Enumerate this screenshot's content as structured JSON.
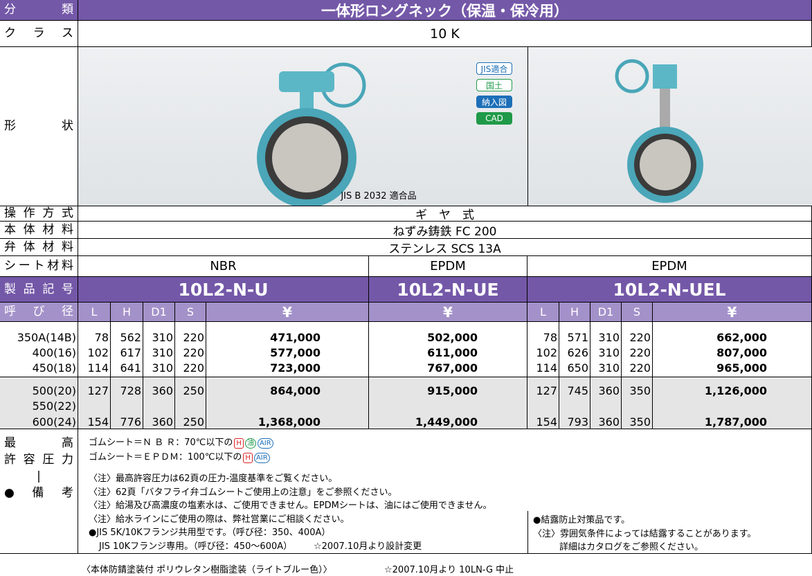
{
  "header": {
    "label": "分類",
    "title": "一体形ロングネック（保温・保冷用）"
  },
  "class": {
    "label": "クラス",
    "value": "10 K"
  },
  "shape": {
    "label": "形状",
    "badges": [
      "JIS適合",
      "国土",
      "納入図",
      "CAD"
    ],
    "note": "JIS B 2032 適合品"
  },
  "specs": [
    {
      "label": "操作方式",
      "value": "ギ　ヤ　式"
    },
    {
      "label": "本体材料",
      "value": "ねずみ鋳鉄 FC 200"
    },
    {
      "label": "弁体材料",
      "value": "ステンレス SCS 13A"
    }
  ],
  "seat": {
    "label": "シート材料",
    "values": [
      "NBR",
      "EPDM",
      "EPDM"
    ]
  },
  "models": {
    "label": "製品記号",
    "values": [
      "10L2-N-U",
      "10L2-N-UE",
      "10L2-N-UEL"
    ]
  },
  "columns": {
    "label": "呼び径",
    "left": [
      "L",
      "H",
      "D1",
      "S",
      "¥"
    ],
    "mid": "¥",
    "right": [
      "L",
      "H",
      "D1",
      "S",
      "¥"
    ]
  },
  "rows": [
    {
      "size": "350A(14B)",
      "left": [
        "78",
        "562",
        "310",
        "220",
        "471,000"
      ],
      "mid": "502,000",
      "right": [
        "78",
        "571",
        "310",
        "220",
        "662,000"
      ]
    },
    {
      "size": "400(16)",
      "left": [
        "102",
        "617",
        "310",
        "220",
        "577,000"
      ],
      "mid": "611,000",
      "right": [
        "102",
        "626",
        "310",
        "220",
        "807,000"
      ]
    },
    {
      "size": "450(18)",
      "left": [
        "114",
        "641",
        "310",
        "220",
        "723,000"
      ],
      "mid": "767,000",
      "right": [
        "114",
        "650",
        "310",
        "220",
        "965,000"
      ]
    },
    {
      "size": "500(20)",
      "left": [
        "127",
        "728",
        "360",
        "250",
        "864,000"
      ],
      "mid": "915,000",
      "right": [
        "127",
        "745",
        "360",
        "350",
        "1,126,000"
      ]
    },
    {
      "size": "550(22)"
    },
    {
      "size": "600(24)",
      "left": [
        "154",
        "776",
        "360",
        "250",
        "1,368,000"
      ],
      "mid": "1,449,000",
      "right": [
        "154",
        "793",
        "360",
        "350",
        "1,787,000"
      ]
    }
  ],
  "notes": {
    "label": [
      "最高",
      "許容圧力",
      "|",
      "●備考"
    ],
    "pressure": [
      {
        "text": "ゴムシート＝Ｎ Ｂ Ｒ：70℃以下の",
        "icons": [
          "H",
          "油",
          "AIR"
        ]
      },
      {
        "text": "ゴムシート＝ＥＰＤＭ：100℃以下の",
        "icons": [
          "H",
          "AIR"
        ]
      }
    ],
    "lines": [
      "〈注〉最高許容圧力は62頁の圧力-温度基準をご覧ください。",
      "〈注〉62頁「バタフライ弁ゴムシートご使用上の注意」をご参照ください。",
      "〈注〉給湯及び高濃度の塩素水は、ご使用できません。EPDMシートは、油にはご使用できません。",
      "〈注〉給水ラインにご使用の際は、弊社営業にご相談ください。",
      "●JIS 5K/10Kフランジ共用型です。（呼び径：350、400A）"
    ],
    "last": {
      "text": "JIS 10Kフランジ専用。（呼び径：450～600A）",
      "star": "☆2007.10月より設計変更"
    },
    "right": [
      "●結露防止対策品です。",
      "〈注〉雰囲気条件によっては結露することがあります。",
      "詳細はカタログをご参照ください。"
    ]
  },
  "footer": {
    "coating": "〈本体防錆塗装付 ポリウレタン樹脂塗装（ライトブルー色）〉",
    "discontinued": "☆2007.10月より 10LN-G 中止"
  }
}
